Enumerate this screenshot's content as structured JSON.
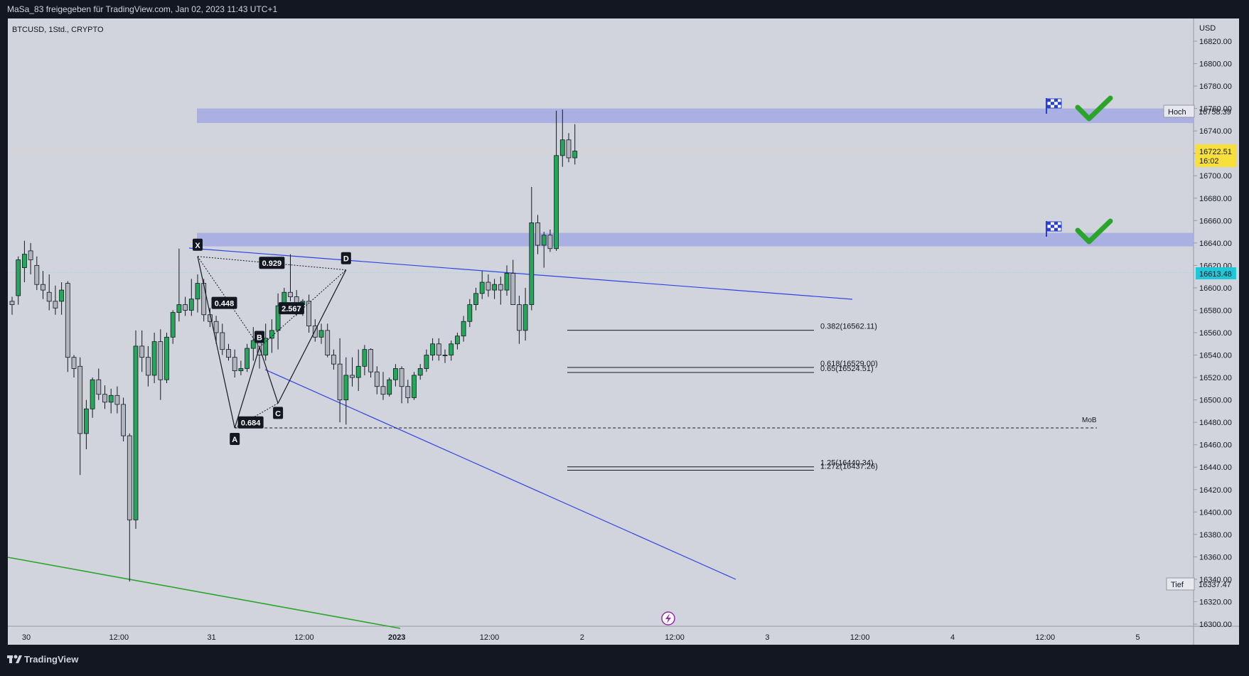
{
  "header": {
    "published": "MaSa_83 freigegeben für TradingView.com, Jan 02, 2023 11:43 UTC+1"
  },
  "chart": {
    "symbol": "BTCUSD, 1Std., CRYPTO",
    "currency": "USD",
    "brand": "TradingView"
  },
  "colors": {
    "up": "#26a65b",
    "down": "#b2b5be",
    "zone": "#a4a9e3",
    "price_tag": "#f7e03c",
    "last_tag": "#1ec8d9",
    "trend_blue": "#2f44e6",
    "trend_green": "#2aa52a"
  },
  "chart_data": {
    "type": "candlestick",
    "ylim": [
      16300,
      16830
    ],
    "y_ticks": [
      16300,
      16320,
      16340,
      16360,
      16380,
      16400,
      16420,
      16440,
      16460,
      16480,
      16500,
      16520,
      16540,
      16560,
      16580,
      16600,
      16620,
      16640,
      16660,
      16680,
      16700,
      16720,
      16740,
      16760,
      16780,
      16800,
      16820
    ],
    "x_ticks": [
      "30",
      "12:00",
      "31",
      "12:00",
      "2023",
      "12:00",
      "2",
      "12:00",
      "3",
      "12:00",
      "4",
      "12:00",
      "5"
    ],
    "candles": [
      [
        16588,
        16592,
        16576,
        16585
      ],
      [
        16593,
        16628,
        16585,
        16625
      ],
      [
        16618,
        16642,
        16605,
        16630
      ],
      [
        16633,
        16640,
        16612,
        16625
      ],
      [
        16620,
        16628,
        16598,
        16603
      ],
      [
        16603,
        16615,
        16590,
        16598
      ],
      [
        16596,
        16612,
        16580,
        16588
      ],
      [
        16588,
        16602,
        16576,
        16582
      ],
      [
        16588,
        16605,
        16576,
        16598
      ],
      [
        16604,
        16606,
        16525,
        16538
      ],
      [
        16538,
        16540,
        16520,
        16528
      ],
      [
        16530,
        16538,
        16433,
        16470
      ],
      [
        16470,
        16500,
        16456,
        16492
      ],
      [
        16492,
        16520,
        16484,
        16518
      ],
      [
        16518,
        16528,
        16500,
        16505
      ],
      [
        16505,
        16513,
        16492,
        16498
      ],
      [
        16498,
        16510,
        16488,
        16504
      ],
      [
        16504,
        16512,
        16488,
        16496
      ],
      [
        16496,
        16502,
        16463,
        16468
      ],
      [
        16468,
        16470,
        16338,
        16393
      ],
      [
        16393,
        16562,
        16385,
        16548
      ],
      [
        16548,
        16562,
        16525,
        16538
      ],
      [
        16538,
        16548,
        16512,
        16522
      ],
      [
        16522,
        16560,
        16515,
        16552
      ],
      [
        16552,
        16563,
        16500,
        16518
      ],
      [
        16518,
        16560,
        16515,
        16556
      ],
      [
        16556,
        16580,
        16550,
        16578
      ],
      [
        16578,
        16635,
        16570,
        16585
      ],
      [
        16585,
        16592,
        16575,
        16580
      ],
      [
        16580,
        16608,
        16575,
        16590
      ],
      [
        16590,
        16612,
        16578,
        16604
      ],
      [
        16604,
        16608,
        16570,
        16576
      ],
      [
        16576,
        16582,
        16565,
        16570
      ],
      [
        16570,
        16575,
        16550,
        16560
      ],
      [
        16560,
        16568,
        16540,
        16545
      ],
      [
        16545,
        16550,
        16535,
        16538
      ],
      [
        16538,
        16545,
        16520,
        16526
      ],
      [
        16526,
        16535,
        16522,
        16528
      ],
      [
        16528,
        16550,
        16525,
        16546
      ],
      [
        16546,
        16565,
        16535,
        16553
      ],
      [
        16553,
        16558,
        16528,
        16540
      ],
      [
        16540,
        16568,
        16535,
        16555
      ],
      [
        16555,
        16572,
        16542,
        16562
      ],
      [
        16562,
        16595,
        16545,
        16584
      ],
      [
        16584,
        16600,
        16580,
        16596
      ],
      [
        16596,
        16630,
        16588,
        16592
      ],
      [
        16592,
        16598,
        16575,
        16585
      ],
      [
        16585,
        16590,
        16575,
        16588
      ],
      [
        16588,
        16594,
        16560,
        16566
      ],
      [
        16566,
        16572,
        16552,
        16556
      ],
      [
        16556,
        16568,
        16550,
        16562
      ],
      [
        16562,
        16568,
        16538,
        16540
      ],
      [
        16540,
        16545,
        16527,
        16532
      ],
      [
        16532,
        16555,
        16480,
        16500
      ],
      [
        16500,
        16538,
        16478,
        16522
      ],
      [
        16522,
        16538,
        16512,
        16520
      ],
      [
        16520,
        16545,
        16508,
        16530
      ],
      [
        16530,
        16549,
        16522,
        16545
      ],
      [
        16545,
        16546,
        16520,
        16525
      ],
      [
        16525,
        16530,
        16505,
        16512
      ],
      [
        16512,
        16525,
        16500,
        16505
      ],
      [
        16505,
        16520,
        16503,
        16518
      ],
      [
        16518,
        16532,
        16512,
        16528
      ],
      [
        16528,
        16530,
        16497,
        16512
      ],
      [
        16512,
        16518,
        16497,
        16502
      ],
      [
        16502,
        16525,
        16500,
        16522
      ],
      [
        16522,
        16532,
        16518,
        16528
      ],
      [
        16528,
        16545,
        16525,
        16540
      ],
      [
        16540,
        16555,
        16535,
        16550
      ],
      [
        16550,
        16555,
        16535,
        16540
      ],
      [
        16540,
        16545,
        16533,
        16540
      ],
      [
        16540,
        16553,
        16535,
        16550
      ],
      [
        16550,
        16560,
        16545,
        16557
      ],
      [
        16557,
        16575,
        16552,
        16570
      ],
      [
        16570,
        16590,
        16565,
        16585
      ],
      [
        16585,
        16600,
        16580,
        16595
      ],
      [
        16595,
        16615,
        16590,
        16605
      ],
      [
        16605,
        16612,
        16592,
        16598
      ],
      [
        16598,
        16608,
        16590,
        16603
      ],
      [
        16603,
        16610,
        16585,
        16598
      ],
      [
        16598,
        16620,
        16593,
        16613
      ],
      [
        16613,
        16625,
        16585,
        16585
      ],
      [
        16585,
        16593,
        16550,
        16562
      ],
      [
        16562,
        16600,
        16553,
        16585
      ],
      [
        16585,
        16690,
        16580,
        16658
      ],
      [
        16658,
        16665,
        16630,
        16638
      ],
      [
        16638,
        16650,
        16618,
        16647
      ],
      [
        16647,
        16652,
        16632,
        16635
      ],
      [
        16635,
        16758,
        16633,
        16718
      ],
      [
        16718,
        16759,
        16708,
        16732
      ],
      [
        16732,
        16738,
        16712,
        16716
      ],
      [
        16716,
        16746,
        16710,
        16722
      ]
    ],
    "zones": [
      {
        "from": 16747,
        "to": 16760
      },
      {
        "from": 16637,
        "to": 16649
      }
    ],
    "harmonic_points": [
      {
        "label": "X",
        "candle": 30,
        "price": 16628
      },
      {
        "label": "A",
        "candle": 36,
        "price": 16475
      },
      {
        "label": "B",
        "candle": 40,
        "price": 16547
      },
      {
        "label": "C",
        "candle": 43,
        "price": 16497
      },
      {
        "label": "D",
        "candle": 54,
        "price": 16616
      }
    ],
    "harmonic_ratios": [
      "0.448",
      "0.684",
      "2.567",
      "0.929"
    ],
    "fib_levels": [
      {
        "label": "0.382(16562.11)",
        "price": 16562.11
      },
      {
        "label": "0.618(16529.00)",
        "price": 16529.0
      },
      {
        "label": "0.65(16524.51)",
        "price": 16524.51
      },
      {
        "label": "1.25(16440.34)",
        "price": 16440.34
      },
      {
        "label": "1.272(16437.26)",
        "price": 16437.26
      }
    ],
    "mob": {
      "label": "MoB",
      "price": 16475
    },
    "high": {
      "label": "Hoch",
      "price": "16758.39",
      "value": 16758.39
    },
    "low": {
      "label": "Tief",
      "price": "16337.47",
      "value": 16337.47
    },
    "current": {
      "price": "16722.51",
      "countdown": "16:02",
      "value": 16722.51
    },
    "last_line": {
      "price": "16613.48",
      "value": 16613.48
    }
  }
}
